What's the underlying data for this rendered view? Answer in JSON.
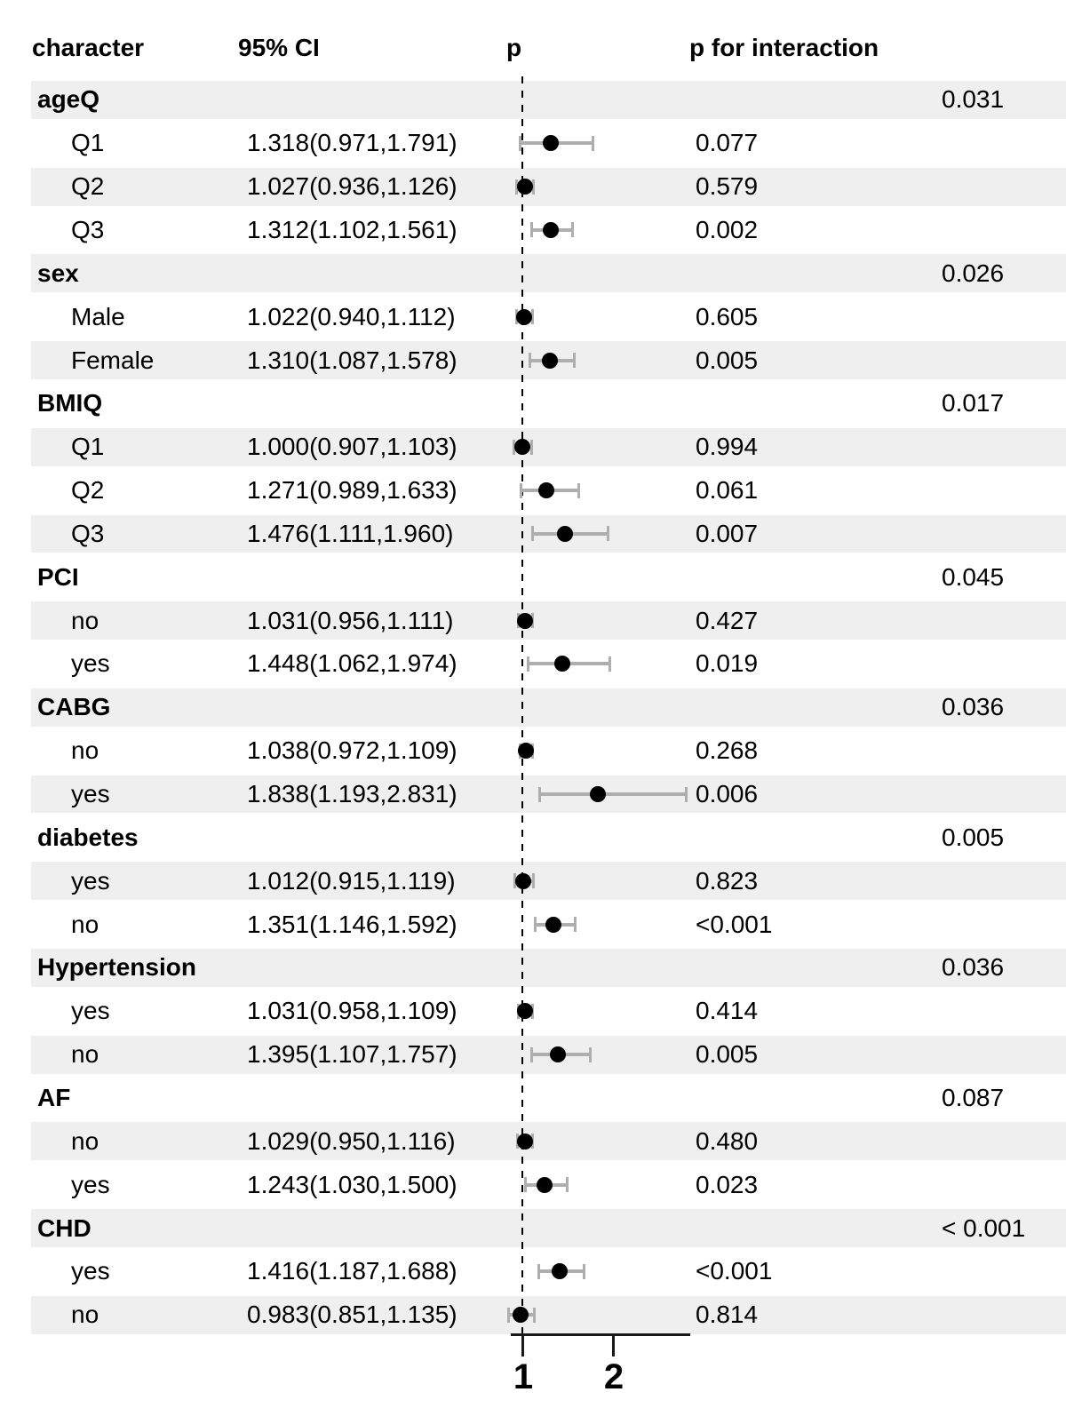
{
  "chart_data": {
    "type": "forest",
    "columns": {
      "character": "character",
      "ci": "95% CI",
      "p": "p",
      "p_interaction": "p for interaction"
    },
    "x_axis": {
      "tick_values": [
        1,
        2
      ],
      "tick_labels": [
        "1",
        "2"
      ],
      "reference_value": 1,
      "xlim": [
        0.87,
        2.87
      ],
      "scale": "linear"
    },
    "colors": {
      "row_shading": "#efefef",
      "error_bar": "#aeaeae",
      "estimate_dot": "#000000",
      "text": "#000000"
    },
    "rows": [
      {
        "type": "group",
        "shaded": true,
        "label": "ageQ",
        "p_interaction": "0.031"
      },
      {
        "type": "item",
        "shaded": false,
        "label": "Q1",
        "ci_text": "1.318(0.971,1.791)",
        "estimate": 1.318,
        "low": 0.971,
        "high": 1.791,
        "p": "0.077"
      },
      {
        "type": "item",
        "shaded": true,
        "label": "Q2",
        "ci_text": "1.027(0.936,1.126)",
        "estimate": 1.027,
        "low": 0.936,
        "high": 1.126,
        "p": "0.579"
      },
      {
        "type": "item",
        "shaded": false,
        "label": "Q3",
        "ci_text": "1.312(1.102,1.561)",
        "estimate": 1.312,
        "low": 1.102,
        "high": 1.561,
        "p": "0.002"
      },
      {
        "type": "group",
        "shaded": true,
        "label": "sex",
        "p_interaction": "0.026"
      },
      {
        "type": "item",
        "shaded": false,
        "label": "Male",
        "ci_text": "1.022(0.940,1.112)",
        "estimate": 1.022,
        "low": 0.94,
        "high": 1.112,
        "p": "0.605"
      },
      {
        "type": "item",
        "shaded": true,
        "label": "Female",
        "ci_text": "1.310(1.087,1.578)",
        "estimate": 1.31,
        "low": 1.087,
        "high": 1.578,
        "p": "0.005"
      },
      {
        "type": "group",
        "shaded": false,
        "label": "BMIQ",
        "p_interaction": "0.017"
      },
      {
        "type": "item",
        "shaded": true,
        "label": "Q1",
        "ci_text": "1.000(0.907,1.103)",
        "estimate": 1.0,
        "low": 0.907,
        "high": 1.103,
        "p": "0.994"
      },
      {
        "type": "item",
        "shaded": false,
        "label": "Q2",
        "ci_text": "1.271(0.989,1.633)",
        "estimate": 1.271,
        "low": 0.989,
        "high": 1.633,
        "p": "0.061"
      },
      {
        "type": "item",
        "shaded": true,
        "label": "Q3",
        "ci_text": "1.476(1.111,1.960)",
        "estimate": 1.476,
        "low": 1.111,
        "high": 1.96,
        "p": "0.007"
      },
      {
        "type": "group",
        "shaded": false,
        "label": "PCI",
        "p_interaction": "0.045"
      },
      {
        "type": "item",
        "shaded": true,
        "label": "no",
        "ci_text": "1.031(0.956,1.111)",
        "estimate": 1.031,
        "low": 0.956,
        "high": 1.111,
        "p": "0.427"
      },
      {
        "type": "item",
        "shaded": false,
        "label": "yes",
        "ci_text": "1.448(1.062,1.974)",
        "estimate": 1.448,
        "low": 1.062,
        "high": 1.974,
        "p": "0.019"
      },
      {
        "type": "group",
        "shaded": true,
        "label": "CABG",
        "p_interaction": "0.036"
      },
      {
        "type": "item",
        "shaded": false,
        "label": "no",
        "ci_text": "1.038(0.972,1.109)",
        "estimate": 1.038,
        "low": 0.972,
        "high": 1.109,
        "p": "0.268"
      },
      {
        "type": "item",
        "shaded": true,
        "label": "yes",
        "ci_text": "1.838(1.193,2.831)",
        "estimate": 1.838,
        "low": 1.193,
        "high": 2.831,
        "p": "0.006"
      },
      {
        "type": "group",
        "shaded": false,
        "label": "diabetes",
        "p_interaction": "0.005"
      },
      {
        "type": "item",
        "shaded": true,
        "label": "yes",
        "ci_text": "1.012(0.915,1.119)",
        "estimate": 1.012,
        "low": 0.915,
        "high": 1.119,
        "p": "0.823"
      },
      {
        "type": "item",
        "shaded": false,
        "label": "no",
        "ci_text": "1.351(1.146,1.592)",
        "estimate": 1.351,
        "low": 1.146,
        "high": 1.592,
        "p": "<0.001"
      },
      {
        "type": "group",
        "shaded": true,
        "label": "Hypertension",
        "p_interaction": "0.036"
      },
      {
        "type": "item",
        "shaded": false,
        "label": "yes",
        "ci_text": "1.031(0.958,1.109)",
        "estimate": 1.031,
        "low": 0.958,
        "high": 1.109,
        "p": "0.414"
      },
      {
        "type": "item",
        "shaded": true,
        "label": "no",
        "ci_text": "1.395(1.107,1.757)",
        "estimate": 1.395,
        "low": 1.107,
        "high": 1.757,
        "p": "0.005"
      },
      {
        "type": "group",
        "shaded": false,
        "label": "AF",
        "p_interaction": "0.087"
      },
      {
        "type": "item",
        "shaded": true,
        "label": "no",
        "ci_text": "1.029(0.950,1.116)",
        "estimate": 1.029,
        "low": 0.95,
        "high": 1.116,
        "p": "0.480"
      },
      {
        "type": "item",
        "shaded": false,
        "label": "yes",
        "ci_text": "1.243(1.030,1.500)",
        "estimate": 1.243,
        "low": 1.03,
        "high": 1.5,
        "p": "0.023"
      },
      {
        "type": "group",
        "shaded": true,
        "label": "CHD",
        "p_interaction": "< 0.001"
      },
      {
        "type": "item",
        "shaded": false,
        "label": "yes",
        "ci_text": "1.416(1.187,1.688)",
        "estimate": 1.416,
        "low": 1.187,
        "high": 1.688,
        "p": "<0.001"
      },
      {
        "type": "item",
        "shaded": true,
        "label": "no",
        "ci_text": "0.983(0.851,1.135)",
        "estimate": 0.983,
        "low": 0.851,
        "high": 1.135,
        "p": "0.814"
      }
    ]
  }
}
